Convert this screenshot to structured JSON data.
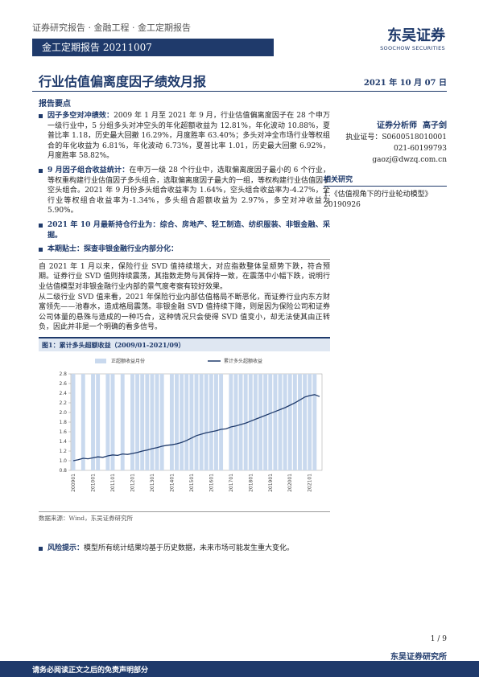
{
  "header": {
    "breadcrumb": "证券研究报告 · 金融工程 · 金工定期报告",
    "series_label": "金工定期报告 20211007",
    "logo_cn": "东吴证券",
    "logo_en": "SOOCHOW SECURITIES"
  },
  "title": "行业估值偏离度因子绩效月报",
  "date": "2021 年 10 月 07 日",
  "summary": {
    "heading": "报告要点",
    "items": [
      {
        "label": "因子多空对冲绩效：",
        "text": "2009 年 1 月至 2021 年 9 月，行业估值偏离度因子在 28 个申万一级行业中，5 分组多头对冲空头的年化超额收益为 12.81%，年化波动 10.88%，夏普比率 1.18，历史最大回撤 16.29%，月度胜率 63.40%；多头对冲全市场行业等权组合的年化收益为 6.81%，年化波动 6.73%，夏普比率 1.01，历史最大回撤 6.92%，月度胜率 58.82%。"
      },
      {
        "label": "9 月因子组合收益统计：",
        "text": "在申万一级 28 个行业中，选取偏离度因子最小的 6 个行业，等权重构建行业估值因子多头组合，选取偏离度因子最大的一组，等权构建行业估值因子空头组合。2021 年 9 月份多头组合收益率为 1.64%，空头组合收益率为-4.27%，全行业等权组合收益率为-1.34%，多头组合超额收益为 2.97%，多空对冲收益为 5.90%。"
      },
      {
        "label": "2021 年 10 月最新持仓行业为：",
        "text": "综合、房地产、轻工制造、纺织服装、非银金融、采掘。"
      },
      {
        "label": "本期贴士：",
        "text": "探查非银金融行业内部分化："
      }
    ]
  },
  "body": [
    "自 2021 年 1 月以来，保险行业 SVD 值持续增大，对应指数整体呈颓势下跌，符合预期。证券行业 SVD 值则持续震荡，其指数走势与其保持一致，在震荡中小幅下跌，说明行业估值模型对非银金融行业内部的景气度考察有较好效果。",
    "从二级行业 SVD 值来看，2021 年保险行业内部估值格局不断恶化，而证券行业内东方财富领先——池春水，造成格局震荡。非银金融 SVD 值持续下降，则是因为保险公司和证券公司体量的悬殊与造成的一种巧合，这种情况只会使得 SVD 值变小，却无法使其由正转负，因此并非是一个明确的看多信号。"
  ],
  "figure": {
    "caption": "图1：累计多头超额收益（2009/01-2021/09）",
    "source": "数据来源：Wind，东吴证券研究所",
    "chart_data": {
      "type": "line",
      "categories": [
        "200901",
        null,
        null,
        null,
        "201001",
        null,
        null,
        null,
        "201101",
        null,
        null,
        null,
        "201201",
        null,
        null,
        null,
        "201301",
        null,
        null,
        null,
        "201401",
        null,
        null,
        null,
        "201501",
        null,
        null,
        null,
        "201601",
        null,
        null,
        null,
        "201701",
        null,
        null,
        null,
        "201801",
        null,
        null,
        null,
        "201901",
        null,
        null,
        null,
        "202001",
        null,
        null,
        null,
        "202101",
        null,
        null
      ],
      "series": [
        {
          "name": "正超额收益月份",
          "kind": "bar",
          "color": "#c9d9ee",
          "values": [
            2.8,
            null,
            2.8,
            null,
            2.8,
            2.8,
            null,
            2.8,
            2.8,
            null,
            2.8,
            null,
            2.8,
            2.8,
            2.8,
            2.8,
            2.8,
            2.8,
            2.8,
            null,
            2.8,
            2.8,
            2.8,
            2.8,
            2.8,
            2.8,
            2.8,
            2.8,
            2.8,
            2.8,
            2.8,
            null,
            2.8,
            2.8,
            2.8,
            2.8,
            2.8,
            2.8,
            2.8,
            2.8,
            2.8,
            2.8,
            2.8,
            2.8,
            2.8,
            2.8,
            2.8,
            2.8,
            2.8,
            2.8,
            null
          ]
        },
        {
          "name": "累计多头超额收益",
          "kind": "line",
          "color": "#1f3a6b",
          "values": [
            1.0,
            1.02,
            1.05,
            1.04,
            1.06,
            1.08,
            1.07,
            1.1,
            1.12,
            1.11,
            1.14,
            1.13,
            1.15,
            1.17,
            1.2,
            1.22,
            1.25,
            1.27,
            1.3,
            1.32,
            1.33,
            1.35,
            1.38,
            1.42,
            1.47,
            1.52,
            1.55,
            1.58,
            1.6,
            1.62,
            1.65,
            1.66,
            1.7,
            1.72,
            1.75,
            1.78,
            1.82,
            1.86,
            1.9,
            1.94,
            1.98,
            2.02,
            2.06,
            2.1,
            2.15,
            2.2,
            2.26,
            2.32,
            2.35,
            2.37,
            2.33
          ]
        }
      ],
      "ylim": [
        0.8,
        2.8
      ],
      "yticks": [
        0.8,
        {
          "value": 1,
          "label": "1.0"
        },
        1.2,
        1.4,
        1.6,
        1.8,
        {
          "value": 2,
          "label": "2.0"
        },
        2.2,
        2.4,
        2.6,
        2.8
      ]
    }
  },
  "risk": {
    "label": "风险提示：",
    "text": "模型所有统计结果均基于历史数据，未来市场可能发生重大变化。"
  },
  "sidebar": {
    "analyst_label": "证券分析师",
    "analyst_name": "高子剑",
    "license": "执业证号：S0600518010001",
    "phone": "021-60199793",
    "email": "gaozj@dwzq.com.cn",
    "related_heading": "相关研究",
    "related": [
      "1.《估值视角下的行业轮动模型》20190926"
    ]
  },
  "footer": {
    "page": "1 / 9",
    "company": "东吴证券研究所",
    "disclaimer": "请务必阅读正文之后的免责声明部分"
  }
}
